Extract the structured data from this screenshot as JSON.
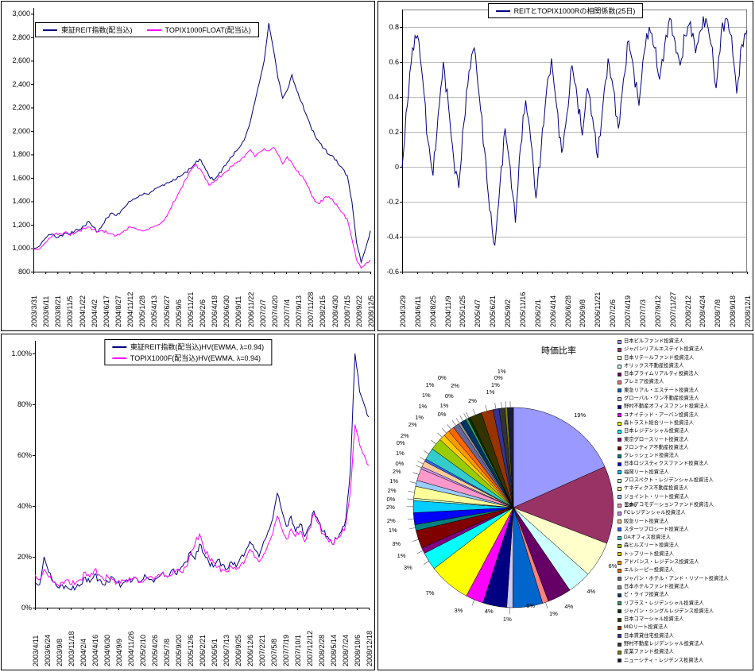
{
  "accent_colors": {
    "series1": "#000080",
    "series2": "#FF00FF",
    "grid": "#b8b8b8"
  },
  "chart_data": [
    {
      "id": "reit_vs_topix_index",
      "type": "line",
      "title": "",
      "legend_position": "top-inside",
      "ylim": [
        800,
        3050
      ],
      "grid": false,
      "y_ticks": [
        {
          "label": "3,000",
          "value": 3000
        },
        {
          "label": "2,800",
          "value": 2800
        },
        {
          "label": "2,600",
          "value": 2600
        },
        {
          "label": "2,400",
          "value": 2400
        },
        {
          "label": "2,200",
          "value": 2200
        },
        {
          "label": "2,000",
          "value": 2000
        },
        {
          "label": "1,800",
          "value": 1800
        },
        {
          "label": "1,600",
          "value": 1600
        },
        {
          "label": "1,400",
          "value": 1400
        },
        {
          "label": "1,200",
          "value": 1200
        },
        {
          "label": "1,000",
          "value": 1000
        },
        {
          "label": "800",
          "value": 800
        }
      ],
      "x_labels": [
        "2003/3/31",
        "2003/6/11",
        "2003/8/21",
        "2003/11/5",
        "2004/1/22",
        "2004/4/2",
        "2004/6/17",
        "2004/8/27",
        "2004/11/12",
        "2005/1/28",
        "2005/4/13",
        "2005/6/27",
        "2005/9/6",
        "2005/11/21",
        "2006/2/6",
        "2006/4/18",
        "2006/6/30",
        "2006/9/11",
        "2006/11/22",
        "2007/2/7",
        "2007/4/20",
        "2007/7/4",
        "2007/9/13",
        "2007/11/28",
        "2008/2/15",
        "2008/4/30",
        "2008/7/15",
        "2008/9/22",
        "2008/12/5"
      ],
      "series": [
        {
          "name": "東証REIT指数(配当込)",
          "color": "#000080",
          "values": [
            1000,
            1010,
            1060,
            1100,
            1120,
            1090,
            1110,
            1130,
            1120,
            1150,
            1160,
            1190,
            1230,
            1180,
            1140,
            1200,
            1260,
            1300,
            1280,
            1320,
            1360,
            1400,
            1420,
            1450,
            1470,
            1460,
            1490,
            1520,
            1540,
            1560,
            1570,
            1590,
            1620,
            1650,
            1680,
            1720,
            1760,
            1700,
            1620,
            1580,
            1620,
            1680,
            1730,
            1780,
            1830,
            1880,
            1960,
            2080,
            2250,
            2420,
            2600,
            2920,
            2700,
            2450,
            2280,
            2350,
            2480,
            2350,
            2250,
            2150,
            2050,
            1960,
            1900,
            1850,
            1800,
            1780,
            1720,
            1680,
            1620,
            1400,
            1050,
            880,
            1000,
            1150
          ]
        },
        {
          "name": "TOPIX1000FLOAT(配当込)",
          "color": "#FF00FF",
          "values": [
            1000,
            990,
            1020,
            1060,
            1100,
            1130,
            1120,
            1140,
            1110,
            1130,
            1150,
            1170,
            1180,
            1160,
            1140,
            1150,
            1130,
            1120,
            1110,
            1130,
            1150,
            1180,
            1170,
            1160,
            1150,
            1160,
            1180,
            1200,
            1230,
            1280,
            1360,
            1430,
            1510,
            1590,
            1660,
            1710,
            1680,
            1620,
            1540,
            1560,
            1600,
            1630,
            1660,
            1700,
            1730,
            1760,
            1800,
            1840,
            1780,
            1820,
            1850,
            1830,
            1860,
            1800,
            1720,
            1780,
            1730,
            1660,
            1620,
            1570,
            1480,
            1400,
            1380,
            1430,
            1440,
            1400,
            1350,
            1300,
            1250,
            1080,
            900,
            830,
            870,
            900
          ]
        }
      ]
    },
    {
      "id": "correlation_25d",
      "type": "line",
      "title": "REITとTOPIX1000Rの相関係数(25日)",
      "ylim": [
        -0.6,
        0.9
      ],
      "grid": true,
      "y_ticks": [
        {
          "label": "0.8",
          "value": 0.8
        },
        {
          "label": "0.6",
          "value": 0.6
        },
        {
          "label": "0.4",
          "value": 0.4
        },
        {
          "label": "0.2",
          "value": 0.2
        },
        {
          "label": "0",
          "value": 0
        },
        {
          "label": "-0.2",
          "value": -0.2
        },
        {
          "label": "-0.4",
          "value": -0.4
        },
        {
          "label": "-0.6",
          "value": -0.6
        }
      ],
      "x_labels": [
        "2004/3/29",
        "2004/6/11",
        "2004/8/25",
        "2004/11/9",
        "2005/1/25",
        "2005/4/7",
        "2005/6/21",
        "2005/9/2",
        "2005/11/16",
        "2006/2/1",
        "2006/4/14",
        "2006/6/28",
        "2006/9/8",
        "2006/11/21",
        "2007/2/6",
        "2007/4/19",
        "2007/7/3",
        "2007/9/12",
        "2007/11/27",
        "2008/2/12",
        "2008/4/24",
        "2008/7/8",
        "2008/9/18",
        "2008/12/1"
      ],
      "series": [
        {
          "name": "REITとTOPIX1000Rの相関係数(25日)",
          "color": "#000080",
          "values": [
            0.0,
            0.35,
            0.68,
            0.75,
            0.5,
            0.15,
            -0.05,
            0.3,
            0.6,
            0.35,
            0.05,
            -0.12,
            0.25,
            0.55,
            0.68,
            0.4,
            0.1,
            -0.25,
            -0.45,
            -0.1,
            0.22,
            0.0,
            -0.32,
            0.12,
            0.38,
            0.15,
            -0.18,
            0.1,
            0.42,
            0.62,
            0.35,
            0.08,
            0.3,
            0.58,
            0.4,
            0.18,
            0.45,
            0.28,
            0.05,
            0.35,
            0.62,
            0.45,
            0.22,
            0.5,
            0.72,
            0.55,
            0.35,
            0.65,
            0.8,
            0.68,
            0.5,
            0.7,
            0.85,
            0.72,
            0.58,
            0.75,
            0.83,
            0.65,
            0.78,
            0.85,
            0.7,
            0.45,
            0.78,
            0.85,
            0.75,
            0.42,
            0.7,
            0.78
          ]
        }
      ]
    },
    {
      "id": "historical_volatility_ewma",
      "type": "line",
      "title": "",
      "ylim": [
        0,
        1.05
      ],
      "grid": false,
      "y_ticks": [
        {
          "label": "1.00%",
          "value": 1.0
        },
        {
          "label": "80%",
          "value": 0.8
        },
        {
          "label": "60%",
          "value": 0.6
        },
        {
          "label": "40%",
          "value": 0.4
        },
        {
          "label": "20%",
          "value": 0.2
        },
        {
          "label": "0%",
          "value": 0.0
        }
      ],
      "x_labels": [
        "2003/4/11",
        "2003/6/24",
        "2003/9/8",
        "2003/11/18",
        "2004/2/4",
        "2004/4/16",
        "2004/6/30",
        "2004/9/9",
        "2004/11/26",
        "2005/2/10",
        "2005/4/26",
        "2005/7/8",
        "2005/9/20",
        "2005/12/6",
        "2006/2/21",
        "2006/5/1",
        "2006/7/13",
        "2006/9/25",
        "2006/12/6",
        "2007/2/21",
        "2007/5/8",
        "2007/7/19",
        "2007/10/1",
        "2007/12/12",
        "2008/2/28",
        "2008/5/14",
        "2008/7/24",
        "2008/10/6",
        "2008/12/18"
      ],
      "series": [
        {
          "name": "東証REIT指数(配当込)HV(EWMA, λ=0.94)",
          "color": "#000080",
          "values": [
            0.1,
            0.09,
            0.2,
            0.14,
            0.1,
            0.08,
            0.09,
            0.08,
            0.07,
            0.08,
            0.09,
            0.12,
            0.1,
            0.13,
            0.11,
            0.09,
            0.1,
            0.12,
            0.1,
            0.09,
            0.11,
            0.1,
            0.12,
            0.1,
            0.13,
            0.11,
            0.1,
            0.12,
            0.14,
            0.12,
            0.15,
            0.13,
            0.16,
            0.18,
            0.22,
            0.19,
            0.25,
            0.21,
            0.18,
            0.16,
            0.19,
            0.17,
            0.15,
            0.18,
            0.16,
            0.2,
            0.22,
            0.26,
            0.23,
            0.2,
            0.26,
            0.3,
            0.35,
            0.45,
            0.38,
            0.32,
            0.36,
            0.3,
            0.33,
            0.28,
            0.32,
            0.38,
            0.34,
            0.3,
            0.28,
            0.25,
            0.27,
            0.3,
            0.35,
            0.55,
            1.0,
            0.85,
            0.8,
            0.75
          ]
        },
        {
          "name": "TOPIX1000F(配当込)HV(EWMA, λ=0.94)",
          "color": "#FF00FF",
          "values": [
            0.13,
            0.11,
            0.15,
            0.12,
            0.1,
            0.09,
            0.1,
            0.11,
            0.09,
            0.1,
            0.11,
            0.14,
            0.12,
            0.15,
            0.13,
            0.11,
            0.12,
            0.11,
            0.1,
            0.11,
            0.1,
            0.11,
            0.12,
            0.1,
            0.11,
            0.12,
            0.11,
            0.13,
            0.14,
            0.12,
            0.13,
            0.15,
            0.14,
            0.16,
            0.21,
            0.25,
            0.29,
            0.23,
            0.2,
            0.18,
            0.16,
            0.15,
            0.14,
            0.16,
            0.15,
            0.17,
            0.19,
            0.23,
            0.2,
            0.18,
            0.21,
            0.25,
            0.29,
            0.36,
            0.31,
            0.27,
            0.31,
            0.28,
            0.3,
            0.26,
            0.31,
            0.37,
            0.33,
            0.29,
            0.27,
            0.25,
            0.27,
            0.29,
            0.33,
            0.46,
            0.72,
            0.64,
            0.6,
            0.56
          ]
        }
      ]
    },
    {
      "id": "market_value_ratio",
      "type": "pie",
      "title": "時価比率",
      "slices": [
        {
          "name": "日本ビルファンド投資法人",
          "label": "19%",
          "value": 19,
          "color": "#9999FF"
        },
        {
          "name": "ジャパンリアルエステイト投資法人",
          "label": "13%",
          "value": 13,
          "color": "#993366"
        },
        {
          "name": "日本リテールファンド投資法人",
          "label": "6%",
          "value": 6,
          "color": "#FFFFCC"
        },
        {
          "name": "オリックス不動産投資法人",
          "label": "4%",
          "value": 4,
          "color": "#CCFFFF"
        },
        {
          "name": "日本プライムリアルティ投資法人",
          "label": "4%",
          "value": 4,
          "color": "#660066"
        },
        {
          "name": "プレミア投資法人",
          "label": "1%",
          "value": 1,
          "color": "#FF8080"
        },
        {
          "name": "東急リアル・エステート投資法人",
          "label": "5%",
          "value": 5,
          "color": "#0066CC"
        },
        {
          "name": "グローバル・ワン不動産投資法人",
          "label": "1%",
          "value": 1,
          "color": "#CCCCFF"
        },
        {
          "name": "野村不動産オフィスファンド投資法人",
          "label": "4%",
          "value": 4,
          "color": "#000080"
        },
        {
          "name": "ユナイテッド・アーバン投資法人",
          "label": "3%",
          "value": 3,
          "color": "#FF00FF"
        },
        {
          "name": "森トラスト総合リート投資法人",
          "label": "7%",
          "value": 7,
          "color": "#FFFF00"
        },
        {
          "name": "日本レジデンシャル投資法人",
          "label": "3%",
          "value": 3,
          "color": "#00FFFF"
        },
        {
          "name": "東京グロースリート投資法人",
          "label": "1%",
          "value": 1,
          "color": "#800080"
        },
        {
          "name": "フロンティア不動産投資法人",
          "label": "3%",
          "value": 3,
          "color": "#800000"
        },
        {
          "name": "クレッシェンド投資法人",
          "label": "1%",
          "value": 1,
          "color": "#008080"
        },
        {
          "name": "日本ロジスティクスファンド投資法人",
          "label": "2%",
          "value": 2,
          "color": "#0000FF"
        },
        {
          "name": "福岡リート投資法人",
          "label": "2%",
          "value": 2,
          "color": "#00CCFF"
        },
        {
          "name": "プロスペクト・レジデンシャル投資法人",
          "label": "0%",
          "value": 0.4,
          "color": "#CCFFCC"
        },
        {
          "name": "ケネディクス不動産投資法人",
          "label": "2%",
          "value": 2,
          "color": "#FFFF99"
        },
        {
          "name": "ジョイント・リート投資法人",
          "label": "1%",
          "value": 1,
          "color": "#99CCFF"
        },
        {
          "name": "日本アコモデーションファンド投資法人",
          "label": "2%",
          "value": 2,
          "color": "#FF99CC"
        },
        {
          "name": "FCレジデンシャル投資法人",
          "label": "0%",
          "value": 0.4,
          "color": "#CC99FF"
        },
        {
          "name": "阪急リート投資法人",
          "label": "1%",
          "value": 1,
          "color": "#FFCC99"
        },
        {
          "name": "スターツプロシード投資法人",
          "label": "0%",
          "value": 0.4,
          "color": "#3366FF"
        },
        {
          "name": "DAオフィス投資法人",
          "label": "2%",
          "value": 2,
          "color": "#33CCCC"
        },
        {
          "name": "森ヒルズリート投資法人",
          "label": "2%",
          "value": 2,
          "color": "#99CC00"
        },
        {
          "name": "トップリート投資法人",
          "label": "1%",
          "value": 1,
          "color": "#FFCC00"
        },
        {
          "name": "アドバンス・レジデンス投資法人",
          "label": "1%",
          "value": 1,
          "color": "#FF9900"
        },
        {
          "name": "エルシーピー投資法人",
          "label": "1%",
          "value": 1,
          "color": "#FF6600"
        },
        {
          "name": "ジャパン・ホテル・アンド・リゾート投資法人",
          "label": "1%",
          "value": 1,
          "color": "#666699"
        },
        {
          "name": "日本ホテルファンド投資法人",
          "label": "0%",
          "value": 0.4,
          "color": "#969696"
        },
        {
          "name": "ビ・ライフ投資法人",
          "label": "1%",
          "value": 1,
          "color": "#003366"
        },
        {
          "name": "リプラス・レジデンシャル投資法人",
          "label": "0%",
          "value": 0.4,
          "color": "#339966"
        },
        {
          "name": "ジャパン・シングルレジデンス投資法人",
          "label": "0%",
          "value": 0.4,
          "color": "#003300"
        },
        {
          "name": "日本コマーシャル投資法人",
          "label": "2%",
          "value": 2,
          "color": "#333300"
        },
        {
          "name": "MIDリート投資法人",
          "label": "2%",
          "value": 2,
          "color": "#993300"
        },
        {
          "name": "日本賃貸住宅投資法人",
          "label": "1%",
          "value": 1,
          "color": "#333399"
        },
        {
          "name": "野村不動産レジデンシャル投資法人",
          "label": "1%",
          "value": 1,
          "color": "#333333"
        },
        {
          "name": "産業ファンド投資法人",
          "label": "0%",
          "value": 0.4,
          "color": "#808000"
        },
        {
          "name": "ニューシティ・レジデンス投資法人",
          "label": "1%",
          "value": 1,
          "color": "#1A1A40"
        }
      ]
    }
  ]
}
